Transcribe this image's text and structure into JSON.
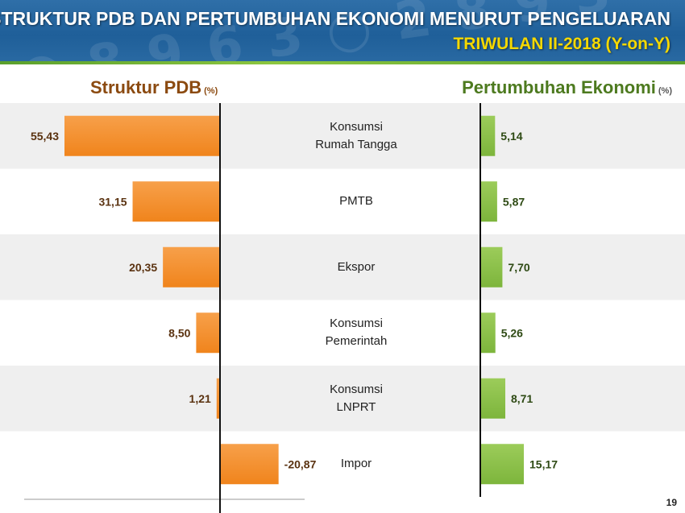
{
  "header": {
    "title": "STRUKTUR PDB DAN PERTUMBUHAN EKONOMI MENURUT PENGELUARAN",
    "subtitle": "TRIWULAN II-2018 (Y-on-Y)"
  },
  "left_heading": {
    "label": "Struktur PDB",
    "unit": "(%)"
  },
  "right_heading": {
    "label": "Pertumbuhan Ekonomi",
    "unit": "(%)"
  },
  "page_number": "19",
  "colors": {
    "struktur_bar": "#f0841c",
    "pertumbuhan_bar": "#7db53c",
    "row_shade": "#efefef",
    "axis": "#111111"
  },
  "chart_data": {
    "type": "bar",
    "categories": [
      "Konsumsi\nRumah Tangga",
      "PMTB",
      "Ekspor",
      "Konsumsi\nPemerintah",
      "Konsumsi\nLNPRT",
      "Impor"
    ],
    "series": [
      {
        "name": "Struktur PDB",
        "values": [
          55.43,
          31.15,
          20.35,
          8.5,
          1.21,
          -20.87
        ],
        "labels": [
          "55,43",
          "31,15",
          "20,35",
          "8,50",
          "1,21",
          "-20,87"
        ]
      },
      {
        "name": "Pertumbuhan Ekonomi",
        "values": [
          5.14,
          5.87,
          7.7,
          5.26,
          8.71,
          15.17
        ],
        "labels": [
          "5,14",
          "5,87",
          "7,70",
          "5,26",
          "8,71",
          "15,17"
        ]
      }
    ]
  }
}
